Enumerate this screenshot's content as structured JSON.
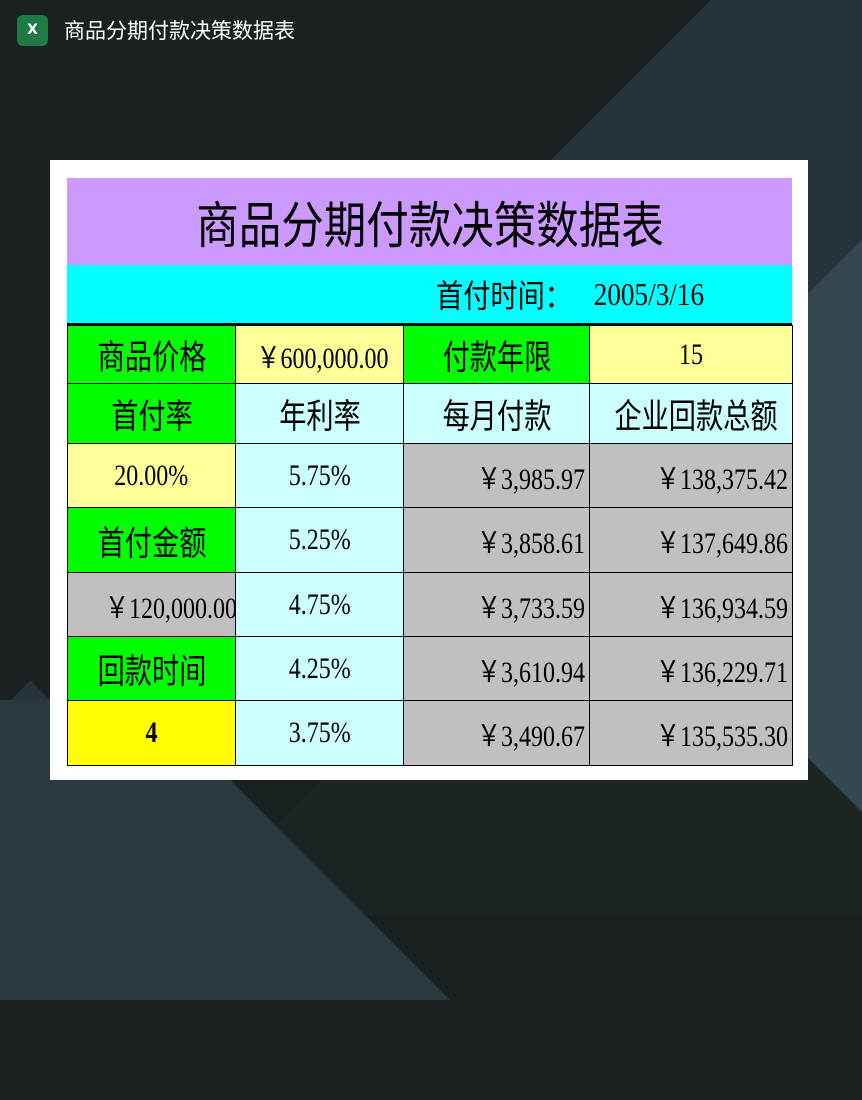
{
  "window": {
    "title": "商品分期付款决策数据表",
    "app_icon": "excel-icon"
  },
  "sheet": {
    "title": "商品分期付款决策数据表",
    "first_payment_date_label": "首付时间：",
    "first_payment_date": "2005/3/16",
    "price_label": "商品价格",
    "price": "￥600,000.00",
    "term_label": "付款年限",
    "term": "15",
    "down_rate_label": "首付率",
    "down_rate": "20.00%",
    "down_amount_label": "首付金额",
    "down_amount": "￥120,000.00",
    "payback_label": "回款时间",
    "payback": "4",
    "headers": [
      "年利率",
      "每月付款",
      "企业回款总额"
    ],
    "rows": [
      [
        "5.75%",
        "￥3,985.97",
        "￥138,375.42"
      ],
      [
        "5.25%",
        "￥3,858.61",
        "￥137,649.86"
      ],
      [
        "4.75%",
        "￥3,733.59",
        "￥136,934.59"
      ],
      [
        "4.25%",
        "￥3,610.94",
        "￥136,229.71"
      ],
      [
        "3.75%",
        "￥3,490.67",
        "￥135,535.30"
      ]
    ]
  },
  "colors": {
    "title_bg": "#cc99ff",
    "date_bg": "#00ffff",
    "label_bg": "#00ff00",
    "input_bg": "#ffff99",
    "rate_bg": "#ccffff",
    "result_bg": "#c0c0c0",
    "highlight_bg": "#ffff00"
  }
}
